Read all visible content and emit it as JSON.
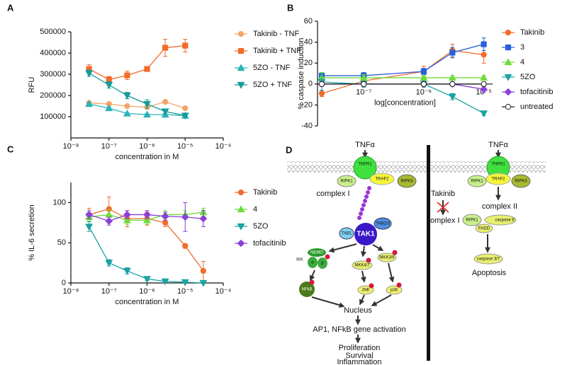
{
  "chart_data": [
    {
      "type": "scatter-line",
      "label": "A",
      "x_label": "concentration in M",
      "y_label": "RFU",
      "log_x": true,
      "xlim": [
        1e-08,
        0.0001
      ],
      "xticks": [
        {
          "value": 1e-08,
          "label": "10⁻⁸"
        },
        {
          "value": 1e-07,
          "label": "10⁻⁷"
        },
        {
          "value": 1e-06,
          "label": "10⁻⁶"
        },
        {
          "value": 1e-05,
          "label": "10⁻⁵"
        },
        {
          "value": 0.0001,
          "label": "10⁻⁴"
        }
      ],
      "ylim": [
        0,
        500000
      ],
      "yticks": [
        100000,
        200000,
        300000,
        400000,
        500000
      ],
      "x": [
        3e-08,
        1e-07,
        3e-07,
        1e-06,
        3e-06,
        1e-05
      ],
      "series": [
        {
          "name": "Takinib - TNF",
          "color": "#f5a468",
          "marker": "circle",
          "values": [
            165000,
            160000,
            150000,
            145000,
            170000,
            140000
          ],
          "errors": [
            8000,
            5000,
            5000,
            5000,
            5000,
            5000
          ]
        },
        {
          "name": "Takinib + TNF",
          "color": "#f26b2a",
          "marker": "square",
          "values": [
            325000,
            275000,
            295000,
            325000,
            425000,
            435000
          ],
          "errors": [
            20000,
            15000,
            20000,
            10000,
            40000,
            30000
          ]
        },
        {
          "name": "5ZO - TNF",
          "color": "#2ab3b8",
          "marker": "tri-up",
          "values": [
            160000,
            140000,
            115000,
            110000,
            110000,
            105000
          ],
          "errors": [
            8000,
            5000,
            5000,
            5000,
            5000,
            5000
          ]
        },
        {
          "name": "5ZO + TNF",
          "color": "#179a9a",
          "marker": "tri-down",
          "values": [
            305000,
            250000,
            200000,
            160000,
            125000,
            105000
          ],
          "errors": [
            15000,
            15000,
            15000,
            20000,
            10000,
            8000
          ]
        }
      ]
    },
    {
      "type": "scatter-line",
      "label": "B",
      "x_label": "log[concentration]",
      "y_label": "% caspase induction",
      "log_x": true,
      "xlim": [
        1.7e-08,
        1.4e-05
      ],
      "xticks": [
        {
          "value": 1e-07,
          "label": "10⁻⁷"
        },
        {
          "value": 1e-06,
          "label": "10⁻⁶"
        },
        {
          "value": 1e-05,
          "label": "10⁻⁵"
        }
      ],
      "ylim": [
        -40,
        60
      ],
      "yticks": [
        -40,
        -20,
        0,
        20,
        40,
        60
      ],
      "x": [
        2e-08,
        1e-07,
        1e-06,
        3e-06,
        1e-05
      ],
      "series": [
        {
          "name": "Takinib",
          "color": "#f26b2a",
          "marker": "circle",
          "values": [
            -9,
            3,
            12,
            32,
            28
          ],
          "errors": [
            3,
            5,
            5,
            6,
            8
          ]
        },
        {
          "name": "3",
          "color": "#2b5fd9",
          "marker": "square",
          "values": [
            8,
            8,
            12,
            30,
            38
          ],
          "errors": [
            3,
            3,
            3,
            5,
            6
          ]
        },
        {
          "name": "4",
          "color": "#6ddc3a",
          "marker": "tri-up",
          "values": [
            6,
            6,
            6,
            6,
            6
          ],
          "errors": [
            5,
            3,
            2,
            2,
            2
          ]
        },
        {
          "name": "5ZO",
          "color": "#1aa3a3",
          "marker": "tri-down",
          "values": [
            2,
            0,
            0,
            -12,
            -28
          ],
          "errors": [
            8,
            3,
            3,
            3,
            2
          ]
        },
        {
          "name": "tofacitinib",
          "color": "#8b3fd9",
          "marker": "diamond",
          "values": [
            0,
            0,
            0,
            0,
            -5
          ],
          "errors": [
            2,
            2,
            2,
            2,
            3
          ]
        },
        {
          "name": "untreated",
          "color": "#222222",
          "marker": "open-circle",
          "values": [
            0,
            0,
            0,
            0,
            0
          ],
          "errors": [
            2,
            2,
            2,
            2,
            2
          ]
        }
      ]
    },
    {
      "type": "scatter-line",
      "label": "C",
      "x_label": "concentration in M",
      "y_label": "% IL-6 secretion",
      "log_x": true,
      "xlim": [
        1e-08,
        0.0001
      ],
      "xticks": [
        {
          "value": 1e-08,
          "label": "10⁻⁸"
        },
        {
          "value": 1e-07,
          "label": "10⁻⁷"
        },
        {
          "value": 1e-06,
          "label": "10⁻⁶"
        },
        {
          "value": 1e-05,
          "label": "10⁻⁵"
        },
        {
          "value": 0.0001,
          "label": "10⁻⁴"
        }
      ],
      "ylim": [
        0,
        125
      ],
      "yticks": [
        0,
        50,
        100
      ],
      "x": [
        3e-08,
        1e-07,
        3e-07,
        1e-06,
        3e-06,
        1e-05,
        3e-05
      ],
      "series": [
        {
          "name": "Takinib",
          "color": "#f26b2a",
          "marker": "circle",
          "values": [
            85,
            92,
            80,
            80,
            75,
            46,
            15
          ],
          "errors": [
            8,
            15,
            10,
            8,
            5,
            3,
            12
          ]
        },
        {
          "name": "4",
          "color": "#6ddc3a",
          "marker": "tri-up",
          "values": [
            82,
            85,
            78,
            78,
            85,
            85,
            88
          ],
          "errors": [
            5,
            6,
            5,
            5,
            5,
            5,
            5
          ]
        },
        {
          "name": "5ZO",
          "color": "#1aa3a3",
          "marker": "tri-down",
          "values": [
            70,
            25,
            15,
            5,
            2,
            1,
            0
          ],
          "errors": [
            6,
            4,
            4,
            2,
            1,
            1,
            1
          ]
        },
        {
          "name": "tofacitinib",
          "color": "#8b3fd9",
          "marker": "diamond",
          "values": [
            85,
            77,
            85,
            85,
            83,
            82,
            80
          ],
          "errors": [
            5,
            5,
            5,
            5,
            5,
            18,
            10
          ]
        }
      ]
    }
  ],
  "diagram": {
    "label": "D",
    "nodes": [
      "TNFα",
      "TNFR1",
      "TRAF2",
      "RIPK1",
      "RIPK3",
      "complex I",
      "TAB2/3",
      "TAB1",
      "TAK1",
      "NEMO",
      "α",
      "β",
      "IKK",
      "NFkB",
      "MKK4/7",
      "MKK3/6",
      "JNK",
      "p38",
      "Nucleus",
      "AP1, NFkB gene activation",
      "Proliferation",
      "Survival",
      "Inflammation",
      "TNFα",
      "TNFR1",
      "TRAF2",
      "RIPK1",
      "RIPK3",
      "Takinib",
      "complex I",
      "complex II",
      "RIPK1",
      "caspase 8",
      "FADD",
      "caspase 3/7",
      "Apoptosis"
    ]
  }
}
